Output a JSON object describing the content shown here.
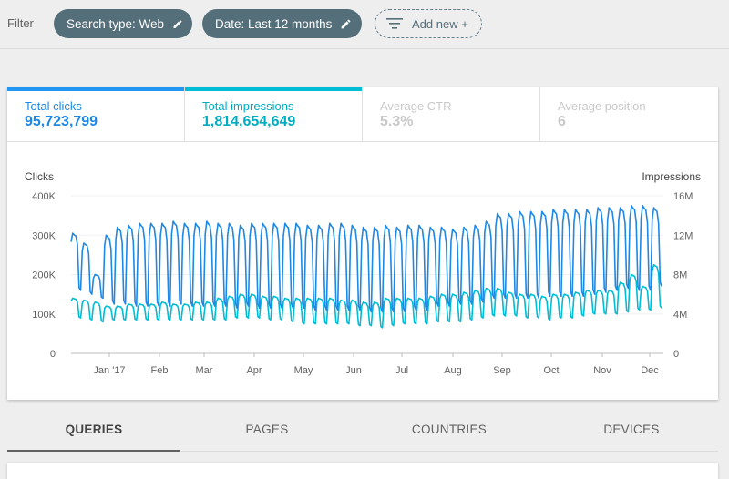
{
  "filter_bar": {
    "label": "Filter",
    "chips": [
      {
        "label": "Search type: Web",
        "icon": "pencil-icon"
      },
      {
        "label": "Date: Last 12 months",
        "icon": "pencil-icon"
      }
    ],
    "add_new_label": "Add new +"
  },
  "metrics": {
    "total_clicks": {
      "label": "Total clicks",
      "value": "95,723,799",
      "color": "#2196f3"
    },
    "total_impressions": {
      "label": "Total impressions",
      "value": "1,814,654,649",
      "color": "#00bcd4"
    },
    "average_ctr": {
      "label": "Average CTR",
      "value": "5.3%"
    },
    "average_position": {
      "label": "Average position",
      "value": "6"
    }
  },
  "chart_data": {
    "type": "line",
    "left_axis_label": "Clicks",
    "right_axis_label": "Impressions",
    "left_ticks": [
      "400K",
      "300K",
      "200K",
      "100K",
      "0"
    ],
    "right_ticks": [
      "16M",
      "12M",
      "8M",
      "4M",
      "0"
    ],
    "y_left_lim": [
      0,
      400000
    ],
    "y_right_lim": [
      0,
      16000000
    ],
    "x_ticks": [
      "Jan '17",
      "Feb",
      "Mar",
      "Apr",
      "May",
      "Jun",
      "Jul",
      "Aug",
      "Sep",
      "Oct",
      "Nov",
      "Dec"
    ],
    "series": [
      {
        "name": "Clicks",
        "color": "#1e88e5",
        "axis": "left",
        "weekly_peaks": [
          305,
          280,
          200,
          300,
          320,
          325,
          330,
          330,
          330,
          335,
          330,
          330,
          335,
          330,
          330,
          325,
          330,
          330,
          330,
          330,
          330,
          325,
          325,
          330,
          330,
          325,
          320,
          320,
          325,
          320,
          325,
          325,
          320,
          320,
          315,
          320,
          325,
          335,
          355,
          355,
          360,
          360,
          360,
          365,
          365,
          365,
          365,
          370,
          370,
          370,
          375,
          375,
          370
        ],
        "weekly_troughs": [
          160,
          150,
          140,
          125,
          125,
          120,
          120,
          120,
          120,
          125,
          120,
          120,
          120,
          120,
          115,
          120,
          115,
          115,
          115,
          115,
          115,
          110,
          110,
          110,
          110,
          110,
          105,
          105,
          105,
          105,
          110,
          110,
          120,
          120,
          125,
          125,
          130,
          140,
          140,
          140,
          140,
          140,
          145,
          145,
          145,
          145,
          150,
          155,
          160,
          165,
          160,
          160,
          170
        ]
      },
      {
        "name": "Impressions",
        "color": "#00bcd4",
        "axis": "right",
        "weekly_peaks": [
          5.6,
          5.4,
          5.2,
          4.8,
          4.8,
          5.0,
          5.0,
          5.0,
          5.2,
          5.0,
          5.0,
          5.2,
          5.2,
          5.6,
          5.8,
          6.0,
          6.0,
          5.8,
          5.8,
          5.6,
          5.6,
          5.6,
          5.6,
          5.6,
          5.4,
          5.4,
          5.2,
          5.2,
          5.6,
          5.6,
          5.6,
          5.6,
          5.8,
          6.0,
          6.0,
          6.2,
          6.4,
          6.6,
          6.6,
          6.2,
          6.0,
          6.0,
          5.8,
          6.0,
          6.0,
          6.2,
          6.4,
          6.4,
          6.4,
          7.2,
          8.0,
          6.8,
          9.0
        ],
        "weekly_troughs": [
          3.6,
          3.4,
          3.2,
          3.4,
          3.4,
          3.4,
          3.4,
          3.4,
          3.4,
          3.4,
          3.4,
          3.4,
          3.4,
          3.4,
          3.6,
          3.6,
          3.6,
          3.4,
          3.4,
          3.2,
          3.0,
          3.0,
          3.0,
          3.0,
          3.0,
          2.8,
          2.8,
          2.6,
          2.8,
          3.0,
          3.0,
          3.0,
          3.2,
          3.2,
          3.2,
          3.4,
          3.6,
          3.8,
          3.8,
          3.8,
          3.6,
          3.6,
          3.4,
          3.6,
          3.6,
          3.8,
          4.0,
          4.0,
          4.0,
          4.2,
          4.4,
          4.4,
          4.6
        ]
      }
    ]
  },
  "tabs": [
    "QUERIES",
    "PAGES",
    "COUNTRIES",
    "DEVICES"
  ],
  "active_tab": "QUERIES"
}
